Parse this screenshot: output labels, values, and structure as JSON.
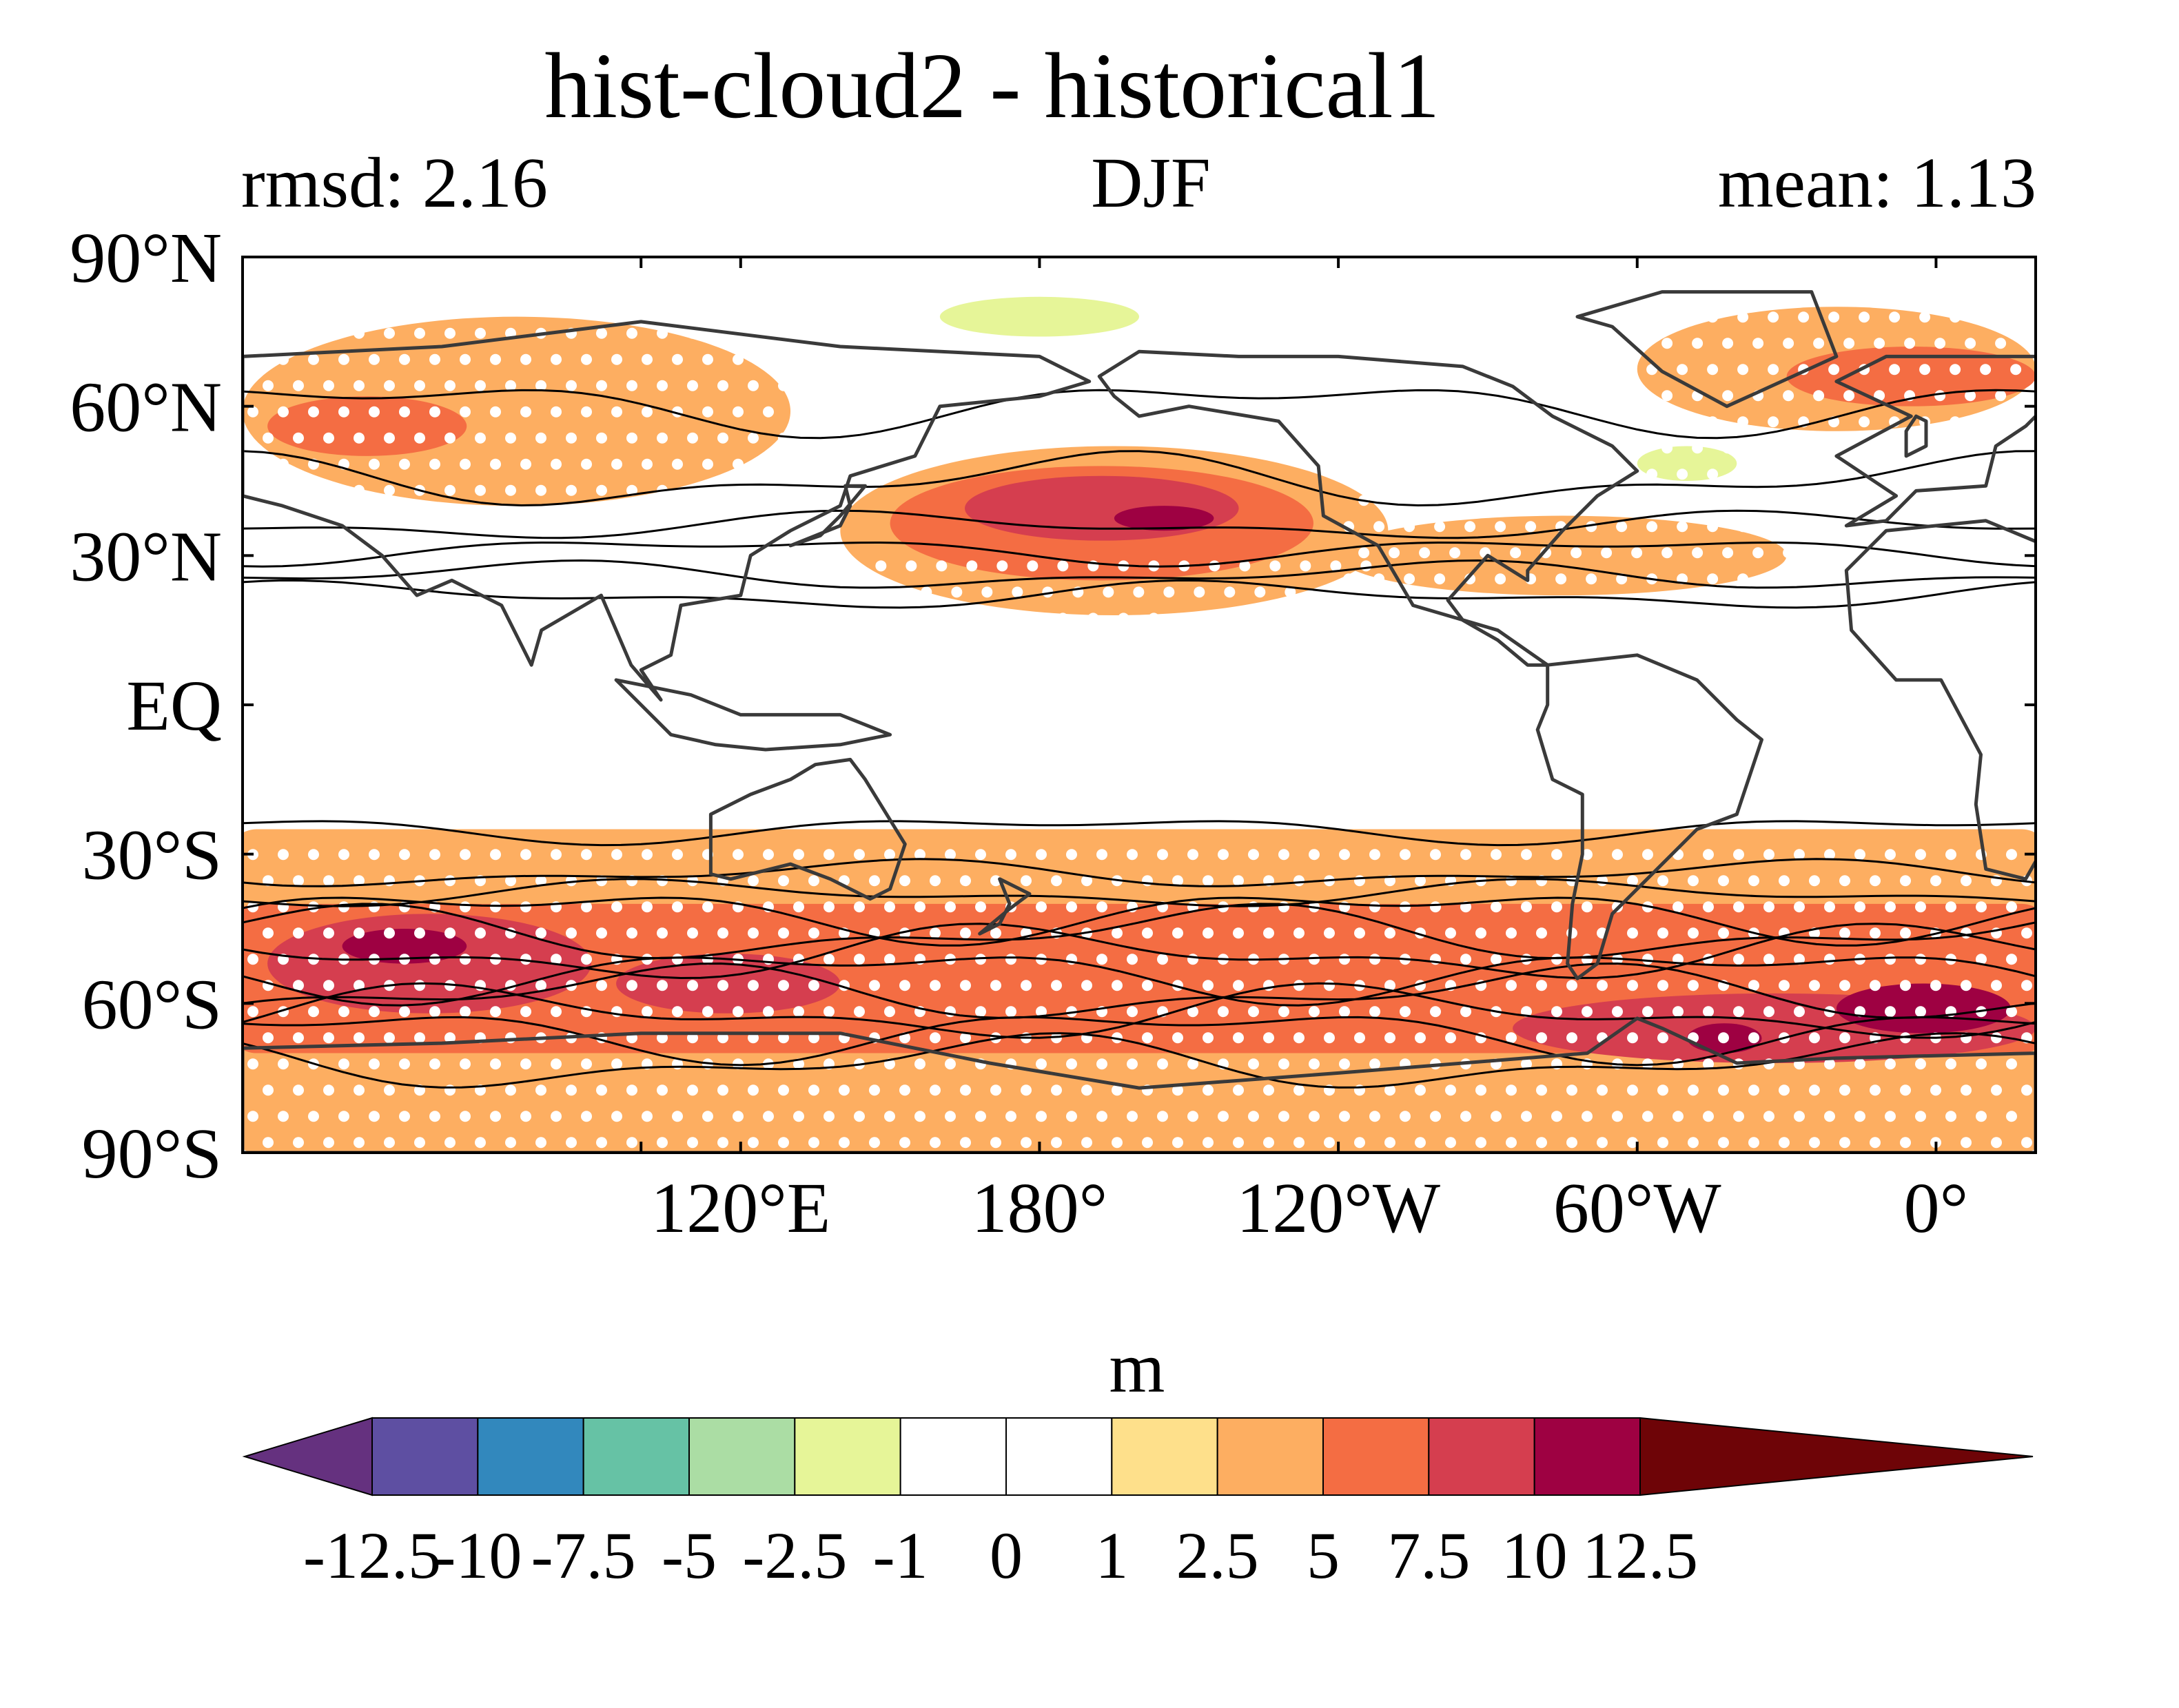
{
  "figure": {
    "title": "hist-cloud2 - historical1",
    "left_label": "rmsd: 2.16",
    "center_label": "DJF",
    "right_label": "mean: 1.13"
  },
  "map": {
    "projection": "cylindrical equidistant",
    "lon_range": [
      20,
      380
    ],
    "lat_range": [
      -90,
      90
    ],
    "lat_ticks": [
      {
        "value": 90,
        "label": "90°N"
      },
      {
        "value": 60,
        "label": "60°N"
      },
      {
        "value": 30,
        "label": "30°N"
      },
      {
        "value": 0,
        "label": "EQ"
      },
      {
        "value": -30,
        "label": "30°S"
      },
      {
        "value": -60,
        "label": "60°S"
      },
      {
        "value": -90,
        "label": "90°S"
      }
    ],
    "lon_ticks": [
      {
        "value": 100,
        "label": ""
      },
      {
        "value": 120,
        "label": "120°E"
      },
      {
        "value": 180,
        "label": "180°"
      },
      {
        "value": 240,
        "label": "120°W"
      },
      {
        "value": 300,
        "label": "60°W"
      },
      {
        "value": 360,
        "label": "0°"
      }
    ],
    "fill_regions": [
      {
        "level": 2.5,
        "lon": [
          20,
          380
        ],
        "lat": [
          -90,
          -25
        ]
      },
      {
        "level": 5,
        "lon": [
          20,
          380
        ],
        "lat": [
          -70,
          -40
        ]
      },
      {
        "level": 7.5,
        "lon": [
          25,
          90
        ],
        "lat": [
          -62,
          -42
        ]
      },
      {
        "level": 7.5,
        "lon": [
          95,
          140
        ],
        "lat": [
          -62,
          -50
        ]
      },
      {
        "level": 7.5,
        "lon": [
          275,
          380
        ],
        "lat": [
          -72,
          -58
        ]
      },
      {
        "level": 10,
        "lon": [
          340,
          375
        ],
        "lat": [
          -66,
          -56
        ]
      },
      {
        "level": 10,
        "lon": [
          310,
          325
        ],
        "lat": [
          -70,
          -64
        ]
      },
      {
        "level": 10,
        "lon": [
          40,
          65
        ],
        "lat": [
          -52,
          -45
        ]
      },
      {
        "level": 2.5,
        "lon": [
          20,
          130
        ],
        "lat": [
          40,
          78
        ]
      },
      {
        "level": 5,
        "lon": [
          25,
          65
        ],
        "lat": [
          50,
          62
        ]
      },
      {
        "level": 2.5,
        "lon": [
          140,
          250
        ],
        "lat": [
          18,
          52
        ]
      },
      {
        "level": 5,
        "lon": [
          150,
          235
        ],
        "lat": [
          25,
          48
        ]
      },
      {
        "level": 7.5,
        "lon": [
          165,
          220
        ],
        "lat": [
          33,
          46
        ]
      },
      {
        "level": 10,
        "lon": [
          195,
          215
        ],
        "lat": [
          35,
          40
        ]
      },
      {
        "level": 2.5,
        "lon": [
          240,
          330
        ],
        "lat": [
          22,
          38
        ]
      },
      {
        "level": 2.5,
        "lon": [
          300,
          380
        ],
        "lat": [
          55,
          80
        ]
      },
      {
        "level": 5,
        "lon": [
          330,
          380
        ],
        "lat": [
          60,
          72
        ]
      },
      {
        "level": -1,
        "lon": [
          140,
          260
        ],
        "lat": [
          60,
          86
        ]
      },
      {
        "level": -2.5,
        "lon": [
          160,
          200
        ],
        "lat": [
          74,
          82
        ]
      },
      {
        "level": -1,
        "lon": [
          285,
          330
        ],
        "lat": [
          42,
          55
        ]
      },
      {
        "level": -2.5,
        "lon": [
          300,
          320
        ],
        "lat": [
          45,
          52
        ]
      }
    ],
    "contours_lat": [
      60,
      45,
      36,
      31,
      26,
      22,
      -25,
      -34,
      -38,
      -42,
      -46,
      -50,
      -54,
      -58,
      -62,
      -66,
      -72
    ],
    "land": [
      {
        "name": "north-america",
        "points": [
          [
            192,
            66
          ],
          [
            200,
            71
          ],
          [
            220,
            70
          ],
          [
            240,
            70
          ],
          [
            265,
            68
          ],
          [
            275,
            64
          ],
          [
            283,
            58
          ],
          [
            295,
            52
          ],
          [
            300,
            47
          ],
          [
            292,
            42
          ],
          [
            285,
            35
          ],
          [
            278,
            27
          ],
          [
            278,
            25
          ],
          [
            270,
            30
          ],
          [
            262,
            21
          ],
          [
            265,
            17
          ],
          [
            272,
            13
          ],
          [
            278,
            8
          ],
          [
            282,
            8
          ],
          [
            272,
            15
          ],
          [
            255,
            20
          ],
          [
            248,
            32
          ],
          [
            237,
            38
          ],
          [
            236,
            48
          ],
          [
            228,
            57
          ],
          [
            210,
            60
          ],
          [
            200,
            58
          ],
          [
            195,
            62
          ]
        ]
      },
      {
        "name": "greenland",
        "points": [
          [
            288,
            78
          ],
          [
            305,
            83
          ],
          [
            335,
            83
          ],
          [
            340,
            70
          ],
          [
            318,
            60
          ],
          [
            305,
            67
          ],
          [
            295,
            76
          ]
        ]
      },
      {
        "name": "south-america",
        "points": [
          [
            282,
            8
          ],
          [
            300,
            10
          ],
          [
            312,
            5
          ],
          [
            320,
            -3
          ],
          [
            325,
            -7
          ],
          [
            320,
            -22
          ],
          [
            312,
            -25
          ],
          [
            302,
            -35
          ],
          [
            295,
            -42
          ],
          [
            292,
            -52
          ],
          [
            288,
            -55
          ],
          [
            286,
            -52
          ],
          [
            287,
            -40
          ],
          [
            289,
            -30
          ],
          [
            289,
            -18
          ],
          [
            283,
            -15
          ],
          [
            280,
            -5
          ],
          [
            282,
            0
          ]
        ]
      },
      {
        "name": "eurasia",
        "points": [
          [
            342,
            36
          ],
          [
            350,
            37
          ],
          [
            356,
            43
          ],
          [
            370,
            44
          ],
          [
            372,
            52
          ],
          [
            378,
            56
          ],
          [
            382,
            60
          ],
          [
            380,
            70
          ],
          [
            350,
            70
          ],
          [
            340,
            65
          ],
          [
            355,
            58
          ],
          [
            340,
            50
          ],
          [
            352,
            42
          ]
        ]
      },
      {
        "name": "asia",
        "points": [
          [
            20,
            60
          ],
          [
            20,
            70
          ],
          [
            60,
            72
          ],
          [
            100,
            77
          ],
          [
            140,
            72
          ],
          [
            180,
            70
          ],
          [
            190,
            65
          ],
          [
            180,
            62
          ],
          [
            160,
            60
          ],
          [
            155,
            50
          ],
          [
            142,
            46
          ],
          [
            140,
            40
          ],
          [
            130,
            35
          ],
          [
            122,
            30
          ],
          [
            120,
            22
          ],
          [
            108,
            20
          ],
          [
            106,
            10
          ],
          [
            100,
            7
          ],
          [
            104,
            1
          ],
          [
            98,
            8
          ],
          [
            92,
            22
          ],
          [
            80,
            15
          ],
          [
            78,
            8
          ],
          [
            72,
            20
          ],
          [
            62,
            25
          ],
          [
            55,
            22
          ],
          [
            48,
            30
          ],
          [
            40,
            36
          ],
          [
            28,
            40
          ],
          [
            20,
            42
          ]
        ]
      },
      {
        "name": "africa",
        "points": [
          [
            350,
            35
          ],
          [
            370,
            37
          ],
          [
            382,
            32
          ],
          [
            392,
            15
          ],
          [
            400,
            12
          ],
          [
            391,
            -12
          ],
          [
            378,
            -35
          ],
          [
            370,
            -33
          ],
          [
            368,
            -20
          ],
          [
            369,
            -10
          ],
          [
            361,
            5
          ],
          [
            352,
            5
          ],
          [
            343,
            15
          ],
          [
            342,
            27
          ]
        ]
      },
      {
        "name": "australia",
        "points": [
          [
            114,
            -22
          ],
          [
            114,
            -34
          ],
          [
            118,
            -35
          ],
          [
            130,
            -32
          ],
          [
            138,
            -35
          ],
          [
            146,
            -39
          ],
          [
            150,
            -37
          ],
          [
            153,
            -28
          ],
          [
            145,
            -15
          ],
          [
            142,
            -11
          ],
          [
            135,
            -12
          ],
          [
            130,
            -15
          ],
          [
            122,
            -18
          ]
        ]
      },
      {
        "name": "antarctica",
        "points": [
          [
            20,
            -69
          ],
          [
            60,
            -68
          ],
          [
            100,
            -66
          ],
          [
            140,
            -66
          ],
          [
            170,
            -72
          ],
          [
            200,
            -77
          ],
          [
            240,
            -74
          ],
          [
            290,
            -70
          ],
          [
            300,
            -63
          ],
          [
            305,
            -65
          ],
          [
            320,
            -72
          ],
          [
            340,
            -71
          ],
          [
            380,
            -70
          ],
          [
            380,
            -90
          ],
          [
            20,
            -90
          ]
        ]
      },
      {
        "name": "new-zealand",
        "points": [
          [
            172,
            -35
          ],
          [
            178,
            -38
          ],
          [
            174,
            -41
          ],
          [
            168,
            -46
          ],
          [
            172,
            -44
          ],
          [
            174,
            -40
          ]
        ]
      },
      {
        "name": "indonesia",
        "points": [
          [
            95,
            5
          ],
          [
            106,
            -6
          ],
          [
            115,
            -8
          ],
          [
            125,
            -9
          ],
          [
            140,
            -8
          ],
          [
            150,
            -6
          ],
          [
            140,
            -2
          ],
          [
            120,
            -2
          ],
          [
            110,
            2
          ],
          [
            100,
            4
          ]
        ]
      },
      {
        "name": "japan",
        "points": [
          [
            130,
            32
          ],
          [
            135,
            34
          ],
          [
            140,
            36
          ],
          [
            142,
            40
          ],
          [
            141,
            44
          ],
          [
            145,
            44
          ],
          [
            140,
            38
          ],
          [
            136,
            34
          ]
        ]
      },
      {
        "name": "uk",
        "points": [
          [
            354,
            50
          ],
          [
            358,
            52
          ],
          [
            358,
            57
          ],
          [
            356,
            58
          ],
          [
            354,
            55
          ]
        ]
      }
    ],
    "stipple": [
      {
        "lon": [
          20,
          380
        ],
        "lat": [
          -88,
          -28
        ]
      },
      {
        "lon": [
          20,
          140
        ],
        "lat": [
          35,
          82
        ]
      },
      {
        "lon": [
          240,
          380
        ],
        "lat": [
          20,
          80
        ]
      },
      {
        "lon": [
          140,
          250
        ],
        "lat": [
          15,
          30
        ]
      }
    ]
  },
  "colorbar": {
    "unit": "m",
    "boundaries": [
      "-12.5",
      "-10",
      "-7.5",
      "-5",
      "-2.5",
      "-1",
      "0",
      "1",
      "2.5",
      "5",
      "7.5",
      "10",
      "12.5"
    ],
    "bins": [
      {
        "low": -12.5,
        "high": -10,
        "color": "#5e4fa2"
      },
      {
        "low": -10,
        "high": -7.5,
        "color": "#3288bd"
      },
      {
        "low": -7.5,
        "high": -5,
        "color": "#66c2a5"
      },
      {
        "low": -5,
        "high": -2.5,
        "color": "#abdda4"
      },
      {
        "low": -2.5,
        "high": -1,
        "color": "#e6f598"
      },
      {
        "low": -1,
        "high": 0,
        "color": "#ffffff"
      },
      {
        "low": 0,
        "high": 1,
        "color": "#ffffff"
      },
      {
        "low": 1,
        "high": 2.5,
        "color": "#fee08b"
      },
      {
        "low": 2.5,
        "high": 5,
        "color": "#fdae61"
      },
      {
        "low": 5,
        "high": 7.5,
        "color": "#f46d43"
      },
      {
        "low": 7.5,
        "high": 10,
        "color": "#d53e4f"
      },
      {
        "low": 10,
        "high": 12.5,
        "color": "#9e0142"
      }
    ],
    "under_color": "#65317f",
    "over_color": "#6e0407"
  }
}
